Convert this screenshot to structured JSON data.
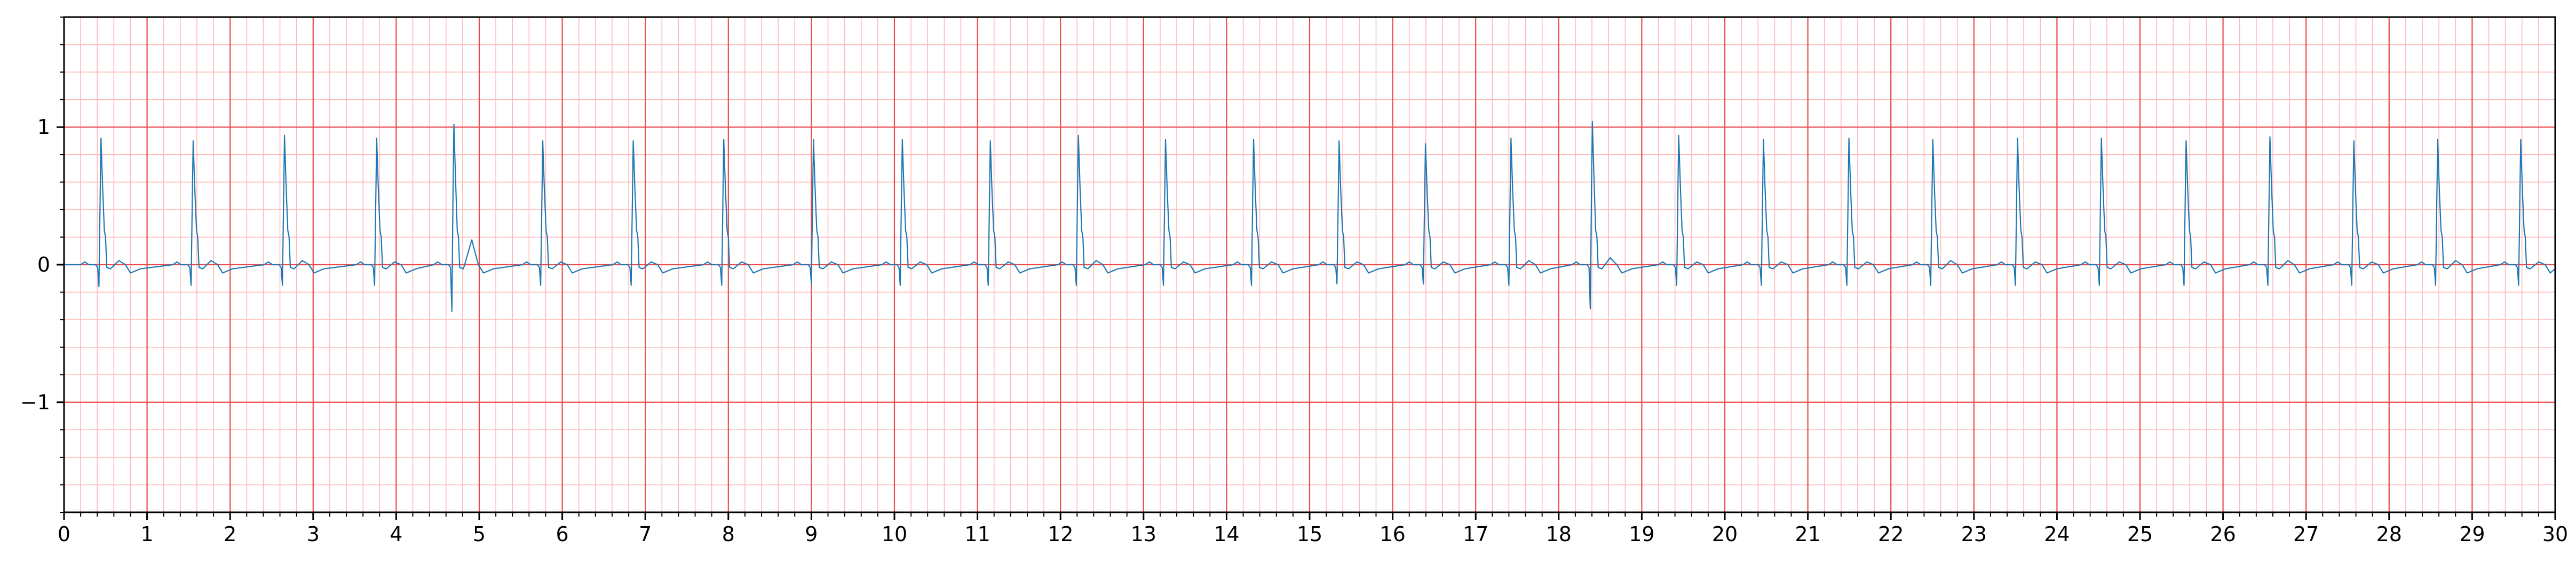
{
  "chart_data": {
    "type": "line",
    "title": "",
    "xlabel": "",
    "ylabel": "",
    "xlim": [
      0,
      30
    ],
    "ylim": [
      -1.8,
      1.8
    ],
    "x_ticks": [
      0,
      1,
      2,
      3,
      4,
      5,
      6,
      7,
      8,
      9,
      10,
      11,
      12,
      13,
      14,
      15,
      16,
      17,
      18,
      19,
      20,
      21,
      22,
      23,
      24,
      25,
      26,
      27,
      28,
      29,
      30
    ],
    "x_tick_labels": [
      "0",
      "1",
      "2",
      "3",
      "4",
      "5",
      "6",
      "7",
      "8",
      "9",
      "10",
      "11",
      "12",
      "13",
      "14",
      "15",
      "16",
      "17",
      "18",
      "19",
      "20",
      "21",
      "22",
      "23",
      "24",
      "25",
      "26",
      "27",
      "28",
      "29",
      "30"
    ],
    "y_ticks": [
      -1,
      0,
      1
    ],
    "y_tick_labels": [
      "−1",
      "0",
      "1"
    ],
    "x_minor_step": 0.2,
    "y_minor_step": 0.2,
    "grid": true,
    "grid_major_color": "#ef4a4a",
    "grid_minor_color": "#ffb9b9",
    "series": [
      {
        "color": "#1f77b4",
        "baseline": 0.0,
        "beats": [
          {
            "t": 0.44,
            "r": 0.92,
            "q": -0.02,
            "s": -0.16,
            "tw": 0.03
          },
          {
            "t": 1.55,
            "r": 0.9,
            "q": -0.02,
            "s": -0.15,
            "tw": 0.03
          },
          {
            "t": 2.65,
            "r": 0.94,
            "q": -0.02,
            "s": -0.15,
            "tw": 0.03
          },
          {
            "t": 3.76,
            "r": 0.92,
            "q": -0.02,
            "s": -0.15,
            "tw": 0.02
          },
          {
            "t": 4.69,
            "r": 1.02,
            "q": -0.02,
            "s": -0.34,
            "tw": 0.18
          },
          {
            "t": 5.76,
            "r": 0.9,
            "q": -0.02,
            "s": -0.15,
            "tw": 0.02
          },
          {
            "t": 6.85,
            "r": 0.9,
            "q": -0.02,
            "s": -0.15,
            "tw": 0.02
          },
          {
            "t": 7.94,
            "r": 0.91,
            "q": -0.02,
            "s": -0.15,
            "tw": 0.02
          },
          {
            "t": 9.02,
            "r": 0.91,
            "q": -0.02,
            "s": -0.14,
            "tw": 0.02
          },
          {
            "t": 10.09,
            "r": 0.91,
            "q": -0.02,
            "s": -0.15,
            "tw": 0.02
          },
          {
            "t": 11.15,
            "r": 0.9,
            "q": -0.02,
            "s": -0.15,
            "tw": 0.02
          },
          {
            "t": 12.21,
            "r": 0.94,
            "q": -0.02,
            "s": -0.15,
            "tw": 0.03
          },
          {
            "t": 13.26,
            "r": 0.91,
            "q": -0.02,
            "s": -0.15,
            "tw": 0.02
          },
          {
            "t": 14.32,
            "r": 0.91,
            "q": -0.02,
            "s": -0.15,
            "tw": 0.02
          },
          {
            "t": 15.35,
            "r": 0.9,
            "q": -0.02,
            "s": -0.14,
            "tw": 0.02
          },
          {
            "t": 16.39,
            "r": 0.88,
            "q": -0.02,
            "s": -0.14,
            "tw": 0.02
          },
          {
            "t": 17.42,
            "r": 0.92,
            "q": -0.02,
            "s": -0.15,
            "tw": 0.03
          },
          {
            "t": 18.4,
            "r": 1.04,
            "q": -0.02,
            "s": -0.32,
            "tw": 0.05
          },
          {
            "t": 19.44,
            "r": 0.94,
            "q": -0.02,
            "s": -0.15,
            "tw": 0.02
          },
          {
            "t": 20.46,
            "r": 0.91,
            "q": -0.02,
            "s": -0.15,
            "tw": 0.02
          },
          {
            "t": 21.49,
            "r": 0.92,
            "q": -0.02,
            "s": -0.15,
            "tw": 0.02
          },
          {
            "t": 22.5,
            "r": 0.91,
            "q": -0.02,
            "s": -0.15,
            "tw": 0.03
          },
          {
            "t": 23.52,
            "r": 0.92,
            "q": -0.02,
            "s": -0.15,
            "tw": 0.02
          },
          {
            "t": 24.53,
            "r": 0.92,
            "q": -0.02,
            "s": -0.15,
            "tw": 0.02
          },
          {
            "t": 25.55,
            "r": 0.9,
            "q": -0.02,
            "s": -0.15,
            "tw": 0.02
          },
          {
            "t": 26.56,
            "r": 0.93,
            "q": -0.02,
            "s": -0.15,
            "tw": 0.03
          },
          {
            "t": 27.57,
            "r": 0.9,
            "q": -0.02,
            "s": -0.15,
            "tw": 0.02
          },
          {
            "t": 28.58,
            "r": 0.91,
            "q": -0.02,
            "s": -0.15,
            "tw": 0.03
          },
          {
            "t": 29.58,
            "r": 0.91,
            "q": -0.02,
            "s": -0.15,
            "tw": 0.02
          }
        ]
      }
    ]
  }
}
